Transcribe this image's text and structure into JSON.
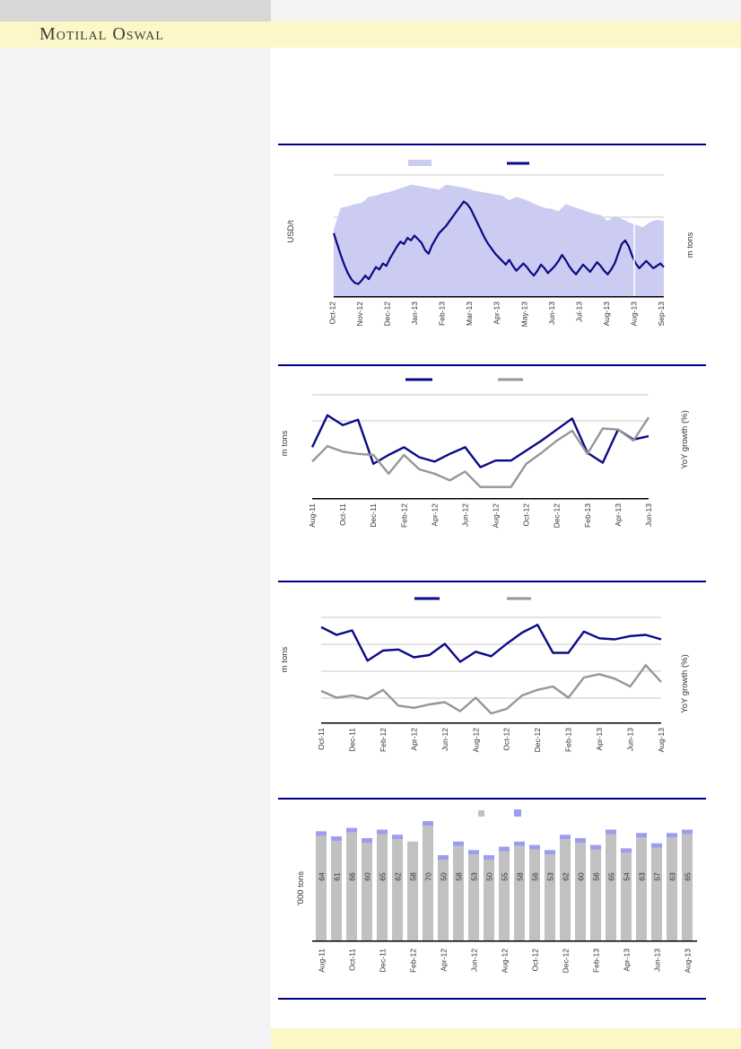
{
  "header": {
    "brand": "Motilal Oswal"
  },
  "colors": {
    "navy": "#0a0a87",
    "area": "#ccccf2",
    "gray": "#969696",
    "bar_gray": "#c1c1c1",
    "bar_cap": "#9d9def",
    "rule": "#00008b",
    "grid": "#c9c9c9",
    "axis": "#000000",
    "tick_text": "#333333",
    "bar_label_text": "#404040",
    "banner": "#fcf7c6",
    "topbar_left": "#d8d8d8",
    "panel": "#f4f4f6"
  },
  "chart_data": [
    {
      "id": "c1",
      "type": "area",
      "title": "",
      "ylabel_left": "USD/t",
      "ylabel_right": "m tons",
      "units": "percent-of-plot-height (numeric axis labels not shown in image)",
      "x_ticks": [
        "Oct-12",
        "Nov-12",
        "Dec-12",
        "Jan-13",
        "Feb-13",
        "Mar-13",
        "Apr-13",
        "May-13",
        "Jun-13",
        "Jul-13",
        "Aug-13",
        "Aug-13",
        "Sep-13"
      ],
      "legend": [
        {
          "name": "volume-area",
          "swatch": "area",
          "label": ""
        },
        {
          "name": "price-line",
          "swatch": "line",
          "label": ""
        }
      ],
      "series": [
        {
          "name": "volume-area",
          "type": "area",
          "values": [
            55,
            73,
            74,
            76,
            77,
            82,
            83,
            85,
            86,
            88,
            90,
            92,
            91,
            90,
            89,
            88,
            92,
            91,
            90,
            89,
            87,
            86,
            85,
            84,
            83,
            79,
            82,
            80,
            78,
            75,
            73,
            72,
            70,
            76,
            74,
            72,
            70,
            68,
            67,
            62,
            66,
            64,
            61,
            59,
            57,
            61,
            63,
            62
          ]
        },
        {
          "name": "price-line",
          "type": "line",
          "values": [
            52,
            43,
            34,
            26,
            19,
            14,
            11,
            10,
            13,
            17,
            14,
            19,
            24,
            22,
            27,
            25,
            31,
            36,
            41,
            45,
            43,
            48,
            46,
            50,
            47,
            44,
            38,
            35,
            42,
            47,
            52,
            55,
            58,
            62,
            66,
            70,
            74,
            78,
            76,
            72,
            66,
            60,
            54,
            48,
            43,
            39,
            35,
            32,
            29,
            26,
            30,
            25,
            21,
            24,
            27,
            24,
            20,
            17,
            21,
            26,
            23,
            19,
            22,
            25,
            29,
            34,
            30,
            25,
            21,
            18,
            22,
            26,
            23,
            20,
            24,
            28,
            25,
            21,
            18,
            22,
            27,
            35,
            43,
            46,
            41,
            33,
            27,
            23,
            26,
            29,
            26,
            23,
            25,
            27,
            24
          ]
        }
      ]
    },
    {
      "id": "c2",
      "type": "line",
      "title": "",
      "ylabel_left": "m tons",
      "ylabel_right": "YoY growth (%)",
      "units": "percent-of-plot-height (numeric axis labels not shown in image)",
      "x_ticks": [
        "Aug-11",
        "Oct-11",
        "Dec-11",
        "Feb-12",
        "Apr-12",
        "Jun-12",
        "Aug-12",
        "Oct-12",
        "Dec-12",
        "Feb-13",
        "Apr-13",
        "Jun-13"
      ],
      "legend": [
        {
          "name": "navy-line",
          "swatch": "line",
          "label": ""
        },
        {
          "name": "gray-line",
          "swatch": "line",
          "label": ""
        }
      ],
      "series": [
        {
          "name": "navy-line",
          "type": "line",
          "values": [
            46,
            75,
            66,
            71,
            31,
            39,
            46,
            37,
            33,
            40,
            46,
            28,
            34,
            34,
            43,
            52,
            62,
            72,
            41,
            32,
            62,
            53,
            56
          ]
        },
        {
          "name": "gray-line",
          "type": "line",
          "values": [
            33,
            47,
            42,
            40,
            39,
            22,
            39,
            26,
            22,
            16,
            24,
            10,
            10,
            10,
            31,
            41,
            52,
            61,
            40,
            63,
            62,
            52,
            73
          ]
        }
      ]
    },
    {
      "id": "c3",
      "type": "line",
      "title": "",
      "ylabel_left": "m tons",
      "ylabel_right": "YoY growth (%)",
      "units": "percent-of-plot-height (numeric axis labels not shown in image)",
      "x_ticks": [
        "Oct-11",
        "Dec-11",
        "Feb-12",
        "Apr-12",
        "Jun-12",
        "Aug-12",
        "Oct-12",
        "Dec-12",
        "Feb-13",
        "Apr-13",
        "Jun-13",
        "Aug-13"
      ],
      "legend": [
        {
          "name": "navy-line",
          "swatch": "line",
          "label": ""
        },
        {
          "name": "gray-line",
          "swatch": "line",
          "label": ""
        }
      ],
      "series": [
        {
          "name": "navy-line",
          "type": "line",
          "values": [
            85,
            78,
            82,
            55,
            64,
            65,
            58,
            60,
            70,
            54,
            63,
            59,
            70,
            80,
            87,
            62,
            62,
            81,
            75,
            74,
            77,
            78,
            74
          ]
        },
        {
          "name": "gray-line",
          "type": "line",
          "values": [
            28,
            22,
            24,
            21,
            29,
            15,
            13,
            16,
            18,
            10,
            22,
            8,
            12,
            24,
            29,
            32,
            22,
            40,
            43,
            39,
            32,
            51,
            36
          ]
        }
      ]
    },
    {
      "id": "c4",
      "type": "bar",
      "title": "",
      "ylabel_left": "'000 tons",
      "units": "'000 tons (values printed on bars)",
      "x_ticks": [
        "Aug-11",
        "Oct-11",
        "Dec-11",
        "Feb-12",
        "Apr-12",
        "Jun-12",
        "Aug-12",
        "Oct-12",
        "Dec-12",
        "Feb-13",
        "Apr-13",
        "Jun-13",
        "Aug-13"
      ],
      "legend": [
        {
          "name": "bar-gray",
          "swatch": "square-gray",
          "label": ""
        },
        {
          "name": "bar-cap",
          "swatch": "square-cap",
          "label": ""
        }
      ],
      "values": [
        64,
        61,
        66,
        60,
        65,
        62,
        58,
        70,
        50,
        58,
        53,
        50,
        55,
        58,
        56,
        53,
        62,
        60,
        56,
        65,
        54,
        63,
        57,
        63,
        65
      ],
      "cap_present": [
        true,
        true,
        true,
        true,
        true,
        true,
        false,
        true,
        true,
        true,
        true,
        true,
        true,
        true,
        true,
        true,
        true,
        true,
        true,
        true,
        true,
        true,
        true,
        true,
        true
      ]
    }
  ]
}
